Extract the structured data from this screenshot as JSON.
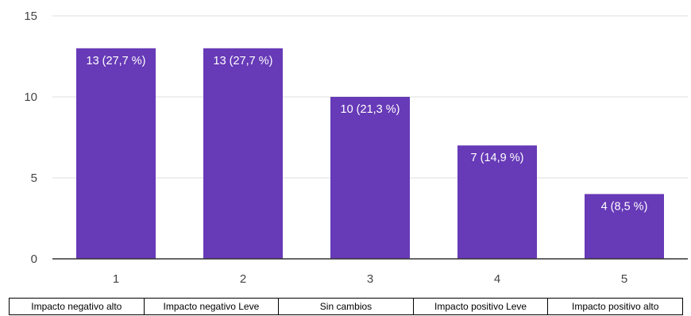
{
  "chart_data": {
    "type": "bar",
    "categories": [
      "1",
      "2",
      "3",
      "4",
      "5"
    ],
    "values": [
      13,
      13,
      10,
      7,
      4
    ],
    "data_labels": [
      "13 (27,7 %)",
      "13 (27,7 %)",
      "10 (21,3 %)",
      "7 (14,9 %)",
      "4 (8,5 %)"
    ],
    "yticks": [
      "0",
      "5",
      "10",
      "15"
    ],
    "ylim": [
      0,
      15
    ],
    "grid": true,
    "bar_color": "#673ab7",
    "title": "",
    "xlabel": "",
    "ylabel": ""
  },
  "category_descriptions": [
    "Impacto negativo alto",
    "Impacto negativo Leve",
    "Sin cambios",
    "Impacto positivo Leve",
    "Impacto positivo alto"
  ]
}
